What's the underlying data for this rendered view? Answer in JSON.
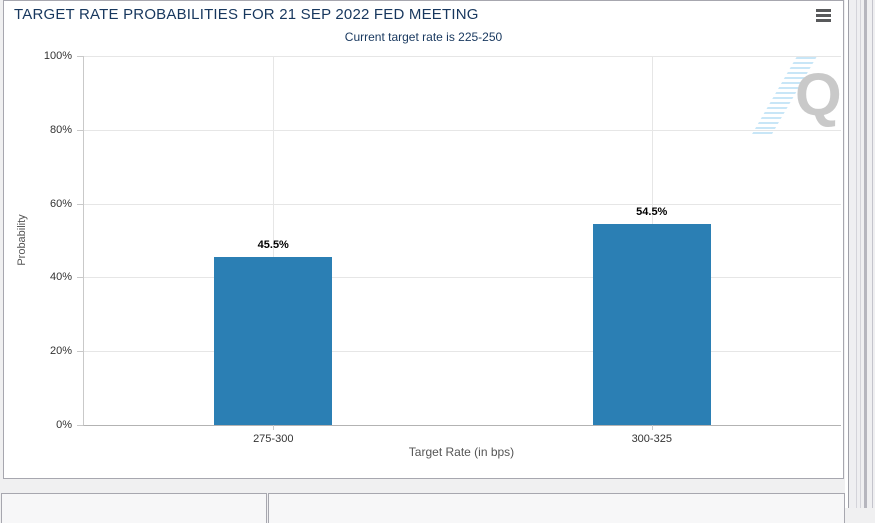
{
  "chart": {
    "export_menu_icon": "hamburger-icon",
    "watermark_letter": "Q"
  },
  "chart_data": {
    "type": "bar",
    "title": "TARGET RATE PROBABILITIES FOR 21 SEP 2022 FED MEETING",
    "subtitle": "Current target rate is 225-250",
    "categories": [
      "275-300",
      "300-325"
    ],
    "values": [
      45.5,
      54.5
    ],
    "value_labels": [
      "45.5%",
      "54.5%"
    ],
    "xlabel": "Target Rate (in bps)",
    "ylabel": "Probability",
    "ylim": [
      0,
      100
    ],
    "y_ticks": [
      {
        "value": 0,
        "label": "0%"
      },
      {
        "value": 20,
        "label": "20%"
      },
      {
        "value": 40,
        "label": "40%"
      },
      {
        "value": 60,
        "label": "60%"
      },
      {
        "value": 80,
        "label": "80%"
      },
      {
        "value": 100,
        "label": "100%"
      }
    ],
    "grid": true,
    "legend": "none",
    "colors": {
      "bar": "#2b7fb4",
      "title_text": "#17375e",
      "gridline": "#e6e6e6",
      "watermark": "#c9c9c9"
    }
  }
}
